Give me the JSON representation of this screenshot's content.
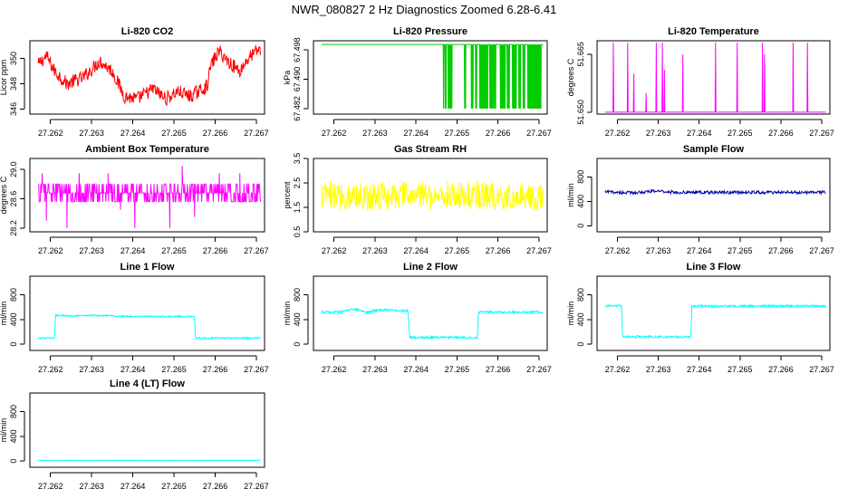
{
  "figure": {
    "title": "NWR_080827  2 Hz Diagnostics Zoomed 6.28-6.41"
  },
  "chart_data": [
    {
      "type": "line",
      "title": "Li-820 CO2",
      "ylabel": "Licor ppm",
      "color": "#ff0000",
      "xlim": [
        27.2615,
        27.2672
      ],
      "ylim": [
        345.6,
        351.4
      ],
      "xticks": [
        "27.262",
        "27.263",
        "27.264",
        "27.265",
        "27.266",
        "27.267"
      ],
      "yticks": [
        {
          "value": 346,
          "label": "346"
        },
        {
          "value": 348,
          "label": "348"
        },
        {
          "value": 350,
          "label": "350"
        }
      ],
      "style": "noisy",
      "noise": 0.55,
      "range": [
        27.2617,
        27.2671
      ],
      "series": {
        "x": [
          27.2617,
          27.2619,
          27.2621,
          27.2624,
          27.2628,
          27.2632,
          27.2635,
          27.2638,
          27.2641,
          27.2645,
          27.2648,
          27.2651,
          27.2654,
          27.2658,
          27.2659,
          27.2661,
          27.2663,
          27.2666,
          27.2668,
          27.2671
        ],
        "y": [
          349.5,
          350.2,
          349.0,
          348.0,
          348.5,
          349.8,
          349.0,
          347.0,
          346.8,
          347.6,
          346.8,
          347.4,
          347.0,
          347.8,
          349.5,
          350.6,
          349.8,
          349.0,
          350.0,
          350.8
        ]
      }
    },
    {
      "type": "line",
      "title": "Li-820 Pressure",
      "ylabel": "kPa",
      "color": "#00cc00",
      "xlim": [
        27.2615,
        27.2672
      ],
      "ylim": [
        67.4805,
        67.5005
      ],
      "xticks": [
        "27.262",
        "27.263",
        "27.264",
        "27.265",
        "27.266",
        "27.267"
      ],
      "yticks": [
        {
          "value": 67.482,
          "label": "67.482"
        },
        {
          "value": 67.49,
          "label": "67.490"
        },
        {
          "value": 67.498,
          "label": "67.498"
        }
      ],
      "style": "binary",
      "low": 67.482,
      "high": 67.4995,
      "range": [
        27.2617,
        27.2671
      ],
      "events": [
        [
          27.26466,
          27.26468
        ],
        [
          27.2647,
          27.26474
        ],
        [
          27.26478,
          27.26488
        ],
        [
          27.26518,
          27.26521
        ],
        [
          27.26535,
          27.2654
        ],
        [
          27.26545,
          27.26548
        ],
        [
          27.26555,
          27.26575
        ],
        [
          27.2658,
          27.26588
        ],
        [
          27.2659,
          27.26595
        ],
        [
          27.26605,
          27.26618
        ],
        [
          27.26622,
          27.26628
        ],
        [
          27.26635,
          27.26645
        ],
        [
          27.2665,
          27.26655
        ],
        [
          27.2666,
          27.26665
        ],
        [
          27.26672,
          27.26705
        ]
      ]
    },
    {
      "type": "line",
      "title": "Li-820 Temperature",
      "ylabel": "degrees C",
      "color": "#ff00ff",
      "xlim": [
        27.2615,
        27.2672
      ],
      "ylim": [
        51.6495,
        51.6685
      ],
      "xticks": [
        "27.262",
        "27.263",
        "27.264",
        "27.265",
        "27.266",
        "27.267"
      ],
      "yticks": [
        {
          "value": 51.65,
          "label": "51.650"
        },
        {
          "value": 51.665,
          "label": "51.665"
        }
      ],
      "style": "spikes",
      "base": 51.65,
      "range": [
        27.2617,
        27.2671
      ],
      "events": [
        [
          27.2619,
          51.668
        ],
        [
          27.26225,
          51.668
        ],
        [
          27.2624,
          51.66
        ],
        [
          27.2627,
          51.655
        ],
        [
          27.26295,
          51.668
        ],
        [
          27.2631,
          51.668
        ],
        [
          27.26315,
          51.661
        ],
        [
          27.2636,
          51.665
        ],
        [
          27.2644,
          51.668
        ],
        [
          27.26493,
          51.668
        ],
        [
          27.26555,
          51.668
        ],
        [
          27.2656,
          51.665
        ],
        [
          27.2663,
          51.668
        ],
        [
          27.26665,
          51.668
        ]
      ]
    },
    {
      "type": "line",
      "title": "Ambient Box Temperature",
      "ylabel": "degrees C",
      "color": "#ff00ff",
      "xlim": [
        27.2615,
        27.2672
      ],
      "ylim": [
        28.15,
        29.15
      ],
      "xticks": [
        "27.262",
        "27.263",
        "27.264",
        "27.265",
        "27.266",
        "27.267"
      ],
      "yticks": [
        {
          "value": 28.2,
          "label": "28.2"
        },
        {
          "value": 28.6,
          "label": "28.6"
        },
        {
          "value": 29.0,
          "label": "29.0"
        }
      ],
      "style": "quantized",
      "levels": [
        28.56,
        28.68,
        28.8
      ],
      "range": [
        27.2617,
        27.2671
      ],
      "events": [
        [
          27.2618,
          28.95
        ],
        [
          27.2619,
          28.3
        ],
        [
          27.2624,
          28.2
        ],
        [
          27.2627,
          28.95
        ],
        [
          27.2634,
          28.95
        ],
        [
          27.2637,
          28.45
        ],
        [
          27.26405,
          28.2
        ],
        [
          27.2649,
          28.2
        ],
        [
          27.2652,
          29.05
        ],
        [
          27.2655,
          28.35
        ],
        [
          27.2661,
          28.95
        ],
        [
          27.2666,
          28.95
        ]
      ]
    },
    {
      "type": "line",
      "title": "Gas Stream RH",
      "ylabel": "percent",
      "color": "#ffff00",
      "xlim": [
        27.2615,
        27.2672
      ],
      "ylim": [
        0.5,
        3.5
      ],
      "xticks": [
        "27.262",
        "27.263",
        "27.264",
        "27.265",
        "27.266",
        "27.267"
      ],
      "yticks": [
        {
          "value": 0.5,
          "label": "0.5"
        },
        {
          "value": 1.5,
          "label": "1.5"
        },
        {
          "value": 2.5,
          "label": "2.5"
        },
        {
          "value": 3.5,
          "label": "3.5"
        }
      ],
      "style": "noisy",
      "noise": 0.6,
      "range": [
        27.2617,
        27.2671
      ],
      "series": {
        "x": [
          27.2617,
          27.2644,
          27.2671
        ],
        "y": [
          1.95,
          2.0,
          1.95
        ]
      }
    },
    {
      "type": "line",
      "title": "Sample Flow",
      "ylabel": "ml/min",
      "color": "#0000aa",
      "xlim": [
        27.2615,
        27.2672
      ],
      "ylim": [
        -100,
        1100
      ],
      "xticks": [
        "27.262",
        "27.263",
        "27.264",
        "27.265",
        "27.266",
        "27.267"
      ],
      "yticks": [
        {
          "value": 0,
          "label": "0"
        },
        {
          "value": 400,
          "label": "400"
        },
        {
          "value": 800,
          "label": "800"
        }
      ],
      "style": "noisy",
      "noise": 25,
      "range": [
        27.2617,
        27.2671
      ],
      "series": {
        "x": [
          27.2617,
          27.2622,
          27.2626,
          27.263,
          27.2634,
          27.2671
        ],
        "y": [
          555,
          540,
          548,
          570,
          545,
          545
        ]
      }
    },
    {
      "type": "line",
      "title": "Line 1 Flow",
      "ylabel": "ml/min",
      "color": "#00ffff",
      "xlim": [
        27.2615,
        27.2672
      ],
      "ylim": [
        -100,
        1100
      ],
      "xticks": [
        "27.262",
        "27.263",
        "27.264",
        "27.265",
        "27.266",
        "27.267"
      ],
      "yticks": [
        {
          "value": 0,
          "label": "0"
        },
        {
          "value": 400,
          "label": "400"
        },
        {
          "value": 800,
          "label": "800"
        }
      ],
      "style": "noisy",
      "noise": 12,
      "range": [
        27.2617,
        27.2671
      ],
      "series": {
        "x": [
          27.2617,
          27.2621,
          27.26212,
          27.2626,
          27.263,
          27.2639,
          27.2655,
          27.26552,
          27.2671
        ],
        "y": [
          100,
          100,
          465,
          455,
          470,
          450,
          450,
          100,
          100
        ]
      }
    },
    {
      "type": "line",
      "title": "Line 2 Flow",
      "ylabel": "ml/min",
      "color": "#00ffff",
      "xlim": [
        27.2615,
        27.2672
      ],
      "ylim": [
        -100,
        1100
      ],
      "xticks": [
        "27.262",
        "27.263",
        "27.264",
        "27.265",
        "27.266",
        "27.267"
      ],
      "yticks": [
        {
          "value": 0,
          "label": "0"
        },
        {
          "value": 400,
          "label": "400"
        },
        {
          "value": 800,
          "label": "800"
        }
      ],
      "style": "noisy",
      "noise": 20,
      "range": [
        27.2617,
        27.2671
      ],
      "series": {
        "x": [
          27.2617,
          27.2621,
          27.2625,
          27.2628,
          27.263,
          27.2633,
          27.2638,
          27.26385,
          27.2655,
          27.26552,
          27.2671
        ],
        "y": [
          520,
          515,
          565,
          520,
          545,
          555,
          540,
          110,
          110,
          520,
          520
        ]
      }
    },
    {
      "type": "line",
      "title": "Line 3 Flow",
      "ylabel": "ml/min",
      "color": "#00ffff",
      "xlim": [
        27.2615,
        27.2672
      ],
      "ylim": [
        -100,
        1100
      ],
      "xticks": [
        "27.262",
        "27.263",
        "27.264",
        "27.265",
        "27.266",
        "27.267"
      ],
      "yticks": [
        {
          "value": 0,
          "label": "0"
        },
        {
          "value": 400,
          "label": "400"
        },
        {
          "value": 800,
          "label": "800"
        }
      ],
      "style": "noisy",
      "noise": 18,
      "range": [
        27.2617,
        27.2671
      ],
      "series": {
        "x": [
          27.2617,
          27.2621,
          27.26212,
          27.2638,
          27.26382,
          27.2671
        ],
        "y": [
          620,
          620,
          120,
          120,
          615,
          620
        ]
      }
    },
    {
      "type": "line",
      "title": "Line 4 (LT) Flow",
      "ylabel": "ml/min",
      "color": "#00ffff",
      "xlim": [
        27.2615,
        27.2672
      ],
      "ylim": [
        -100,
        1100
      ],
      "xticks": [
        "27.262",
        "27.263",
        "27.264",
        "27.265",
        "27.266",
        "27.267"
      ],
      "yticks": [
        {
          "value": 0,
          "label": "0"
        },
        {
          "value": 400,
          "label": "400"
        },
        {
          "value": 800,
          "label": "800"
        }
      ],
      "style": "noisy",
      "noise": 3,
      "range": [
        27.2617,
        27.2671
      ],
      "series": {
        "x": [
          27.2617,
          27.2671
        ],
        "y": [
          12,
          12
        ]
      }
    }
  ]
}
